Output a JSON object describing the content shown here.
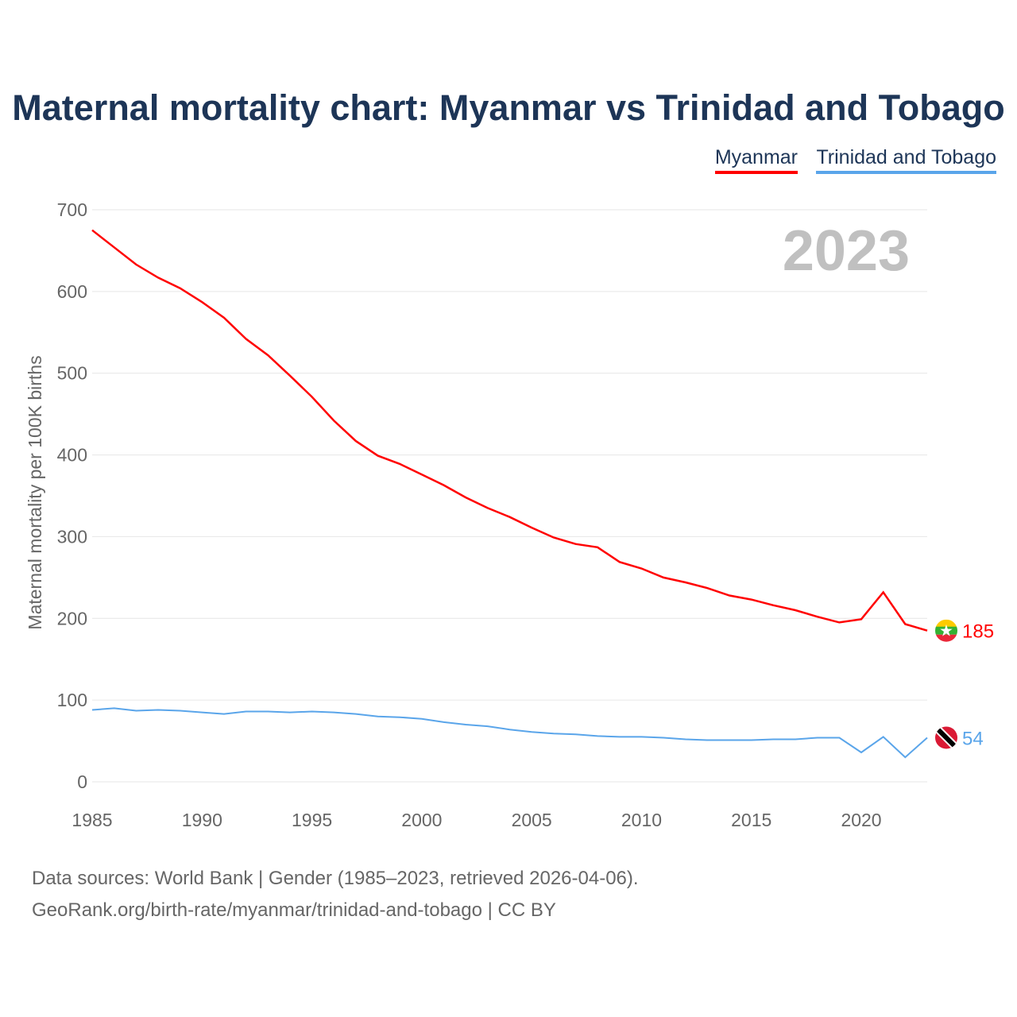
{
  "title": "Maternal mortality chart: Myanmar vs Trinidad and Tobago",
  "footer": {
    "line1": "Data sources: World Bank | Gender (1985–2023, retrieved 2026-04-06).",
    "line2": "GeoRank.org/birth-rate/myanmar/trinidad-and-tobago | CC BY"
  },
  "chart_data": {
    "type": "line",
    "title": "Maternal mortality chart: Myanmar vs Trinidad and Tobago",
    "ylabel": "Maternal mortality per 100K births",
    "xlabel": "",
    "year_label": "2023",
    "xlim": [
      1985,
      2023
    ],
    "ylim": [
      0,
      700
    ],
    "xticks": [
      1985,
      1990,
      1995,
      2000,
      2005,
      2010,
      2015,
      2020
    ],
    "yticks": [
      0,
      100,
      200,
      300,
      400,
      500,
      600,
      700
    ],
    "x": [
      1985,
      1986,
      1987,
      1988,
      1989,
      1990,
      1991,
      1992,
      1993,
      1994,
      1995,
      1996,
      1997,
      1998,
      1999,
      2000,
      2001,
      2002,
      2003,
      2004,
      2005,
      2006,
      2007,
      2008,
      2009,
      2010,
      2011,
      2012,
      2013,
      2014,
      2015,
      2016,
      2017,
      2018,
      2019,
      2020,
      2021,
      2022,
      2023
    ],
    "series": [
      {
        "name": "Myanmar",
        "color": "#ff0000",
        "end_label": "185",
        "flag": "myanmar-flag",
        "values": [
          675,
          654,
          633,
          617,
          604,
          587,
          568,
          542,
          522,
          497,
          471,
          442,
          417,
          399,
          389,
          376,
          363,
          348,
          335,
          324,
          311,
          299,
          291,
          287,
          269,
          261,
          250,
          244,
          237,
          228,
          223,
          216,
          210,
          202,
          195,
          199,
          232,
          193,
          185
        ]
      },
      {
        "name": "Trinidad and Tobago",
        "color": "#5aa5ea",
        "end_label": "54",
        "flag": "trinidad-and-tobago-flag",
        "values": [
          88,
          90,
          87,
          88,
          87,
          85,
          83,
          86,
          86,
          85,
          86,
          85,
          83,
          80,
          79,
          77,
          73,
          70,
          68,
          64,
          61,
          59,
          58,
          56,
          55,
          55,
          54,
          52,
          51,
          51,
          51,
          52,
          52,
          54,
          54,
          36,
          55,
          30,
          54
        ]
      }
    ]
  }
}
